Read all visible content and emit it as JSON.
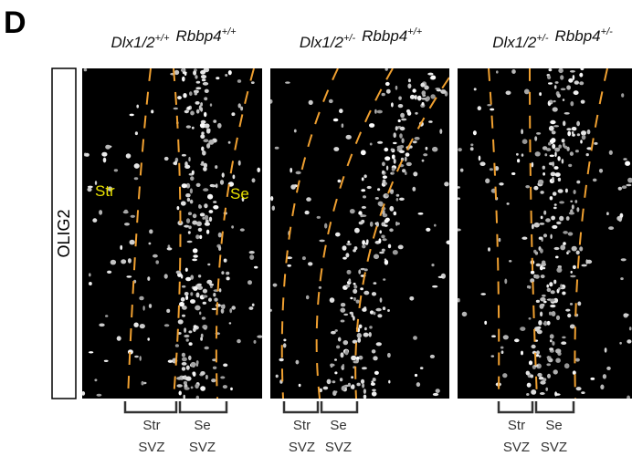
{
  "panel_label": "D",
  "row_label": "OLIG2",
  "image_labels": [
    "Str",
    "Se"
  ],
  "columns": [
    {
      "genotype": [
        {
          "gene": "Dlx1/2",
          "allele": "+/+"
        },
        {
          "gene": "Rbbp4",
          "allele": "+/+"
        }
      ],
      "bottom_labels": [
        {
          "region": "Str",
          "zone": "SVZ"
        },
        {
          "region": "Se",
          "zone": "SVZ"
        }
      ]
    },
    {
      "genotype": [
        {
          "gene": "Dlx1/2",
          "allele": "+/-"
        },
        {
          "gene": "Rbbp4",
          "allele": "+/+"
        }
      ],
      "bottom_labels": [
        {
          "region": "Str",
          "zone": "SVZ"
        },
        {
          "region": "Se",
          "zone": "SVZ"
        }
      ]
    },
    {
      "genotype": [
        {
          "gene": "Dlx1/2",
          "allele": "+/-"
        },
        {
          "gene": "Rbbp4",
          "allele": "+/-"
        }
      ],
      "bottom_labels": [
        {
          "region": "Str",
          "zone": "SVZ"
        },
        {
          "region": "Se",
          "zone": "SVZ"
        }
      ]
    }
  ]
}
